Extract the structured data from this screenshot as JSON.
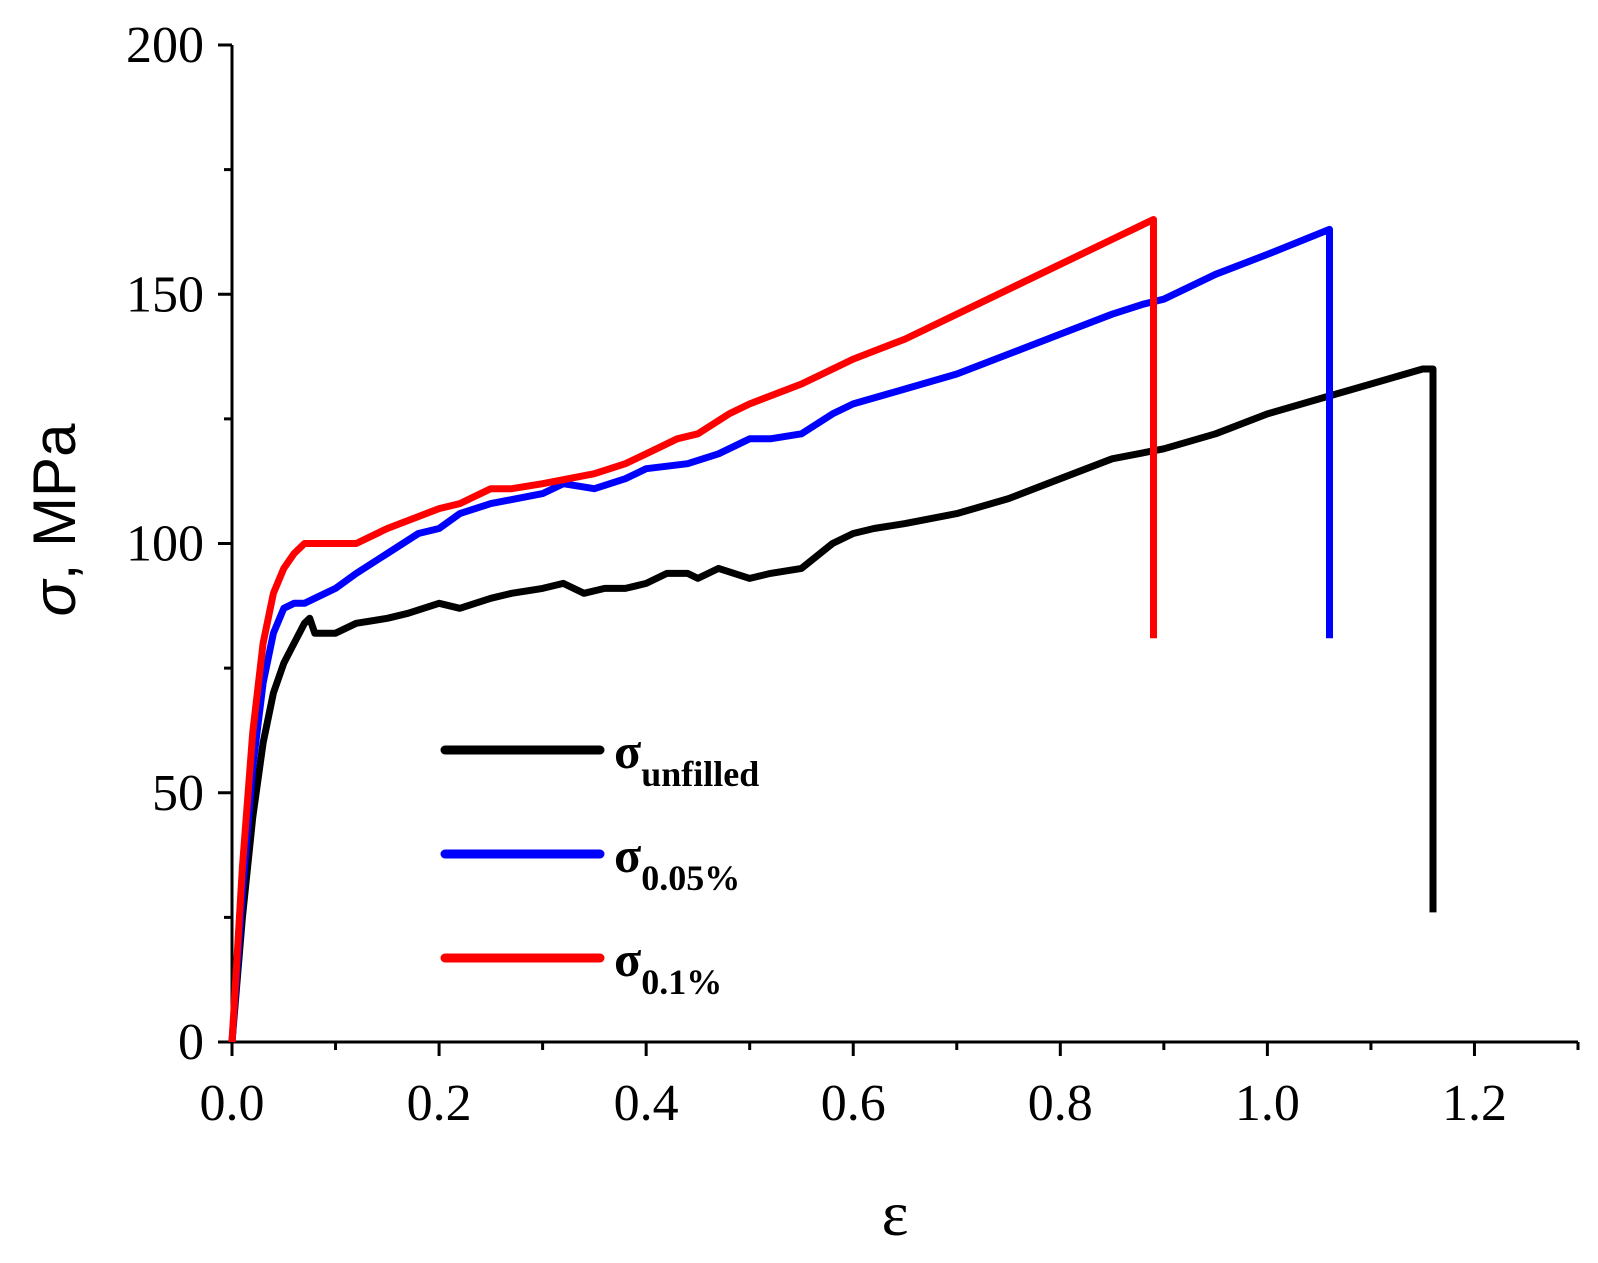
{
  "chart_data": {
    "type": "line",
    "title": "",
    "xlabel": "ε",
    "ylabel_symbol": "σ",
    "ylabel_unit": ", MPa",
    "xlim": [
      0,
      1.3
    ],
    "ylim": [
      0,
      200
    ],
    "xticks": [
      0.0,
      0.2,
      0.4,
      0.6,
      0.8,
      1.0,
      1.2
    ],
    "xtick_labels": [
      "0.0",
      "0.2",
      "0.4",
      "0.6",
      "0.8",
      "1.0",
      "1.2"
    ],
    "yticks": [
      0,
      50,
      100,
      150,
      200
    ],
    "ytick_labels": [
      "0",
      "50",
      "100",
      "150",
      "200"
    ],
    "legend_position": "bottom-left-center",
    "series": [
      {
        "name": "σ_unfilled",
        "label_main": "σ",
        "label_sub": "unfilled",
        "color": "#000000",
        "points": [
          [
            0.0,
            0
          ],
          [
            0.01,
            25
          ],
          [
            0.02,
            45
          ],
          [
            0.03,
            60
          ],
          [
            0.04,
            70
          ],
          [
            0.05,
            76
          ],
          [
            0.06,
            80
          ],
          [
            0.07,
            84
          ],
          [
            0.075,
            85
          ],
          [
            0.08,
            82
          ],
          [
            0.1,
            82
          ],
          [
            0.12,
            84
          ],
          [
            0.15,
            85
          ],
          [
            0.17,
            86
          ],
          [
            0.2,
            88
          ],
          [
            0.22,
            87
          ],
          [
            0.25,
            89
          ],
          [
            0.27,
            90
          ],
          [
            0.3,
            91
          ],
          [
            0.32,
            92
          ],
          [
            0.34,
            90
          ],
          [
            0.36,
            91
          ],
          [
            0.38,
            91
          ],
          [
            0.4,
            92
          ],
          [
            0.42,
            94
          ],
          [
            0.44,
            94
          ],
          [
            0.45,
            93
          ],
          [
            0.47,
            95
          ],
          [
            0.5,
            93
          ],
          [
            0.52,
            94
          ],
          [
            0.55,
            95
          ],
          [
            0.58,
            100
          ],
          [
            0.6,
            102
          ],
          [
            0.62,
            103
          ],
          [
            0.65,
            104
          ],
          [
            0.7,
            106
          ],
          [
            0.75,
            109
          ],
          [
            0.8,
            113
          ],
          [
            0.85,
            117
          ],
          [
            0.9,
            119
          ],
          [
            0.95,
            122
          ],
          [
            1.0,
            126
          ],
          [
            1.05,
            129
          ],
          [
            1.1,
            132
          ],
          [
            1.15,
            135
          ],
          [
            1.16,
            135
          ],
          [
            1.16,
            26
          ]
        ]
      },
      {
        "name": "σ_0.05%",
        "label_main": "σ",
        "label_sub": "0.05%",
        "color": "#0000ff",
        "points": [
          [
            0.0,
            0
          ],
          [
            0.01,
            30
          ],
          [
            0.02,
            55
          ],
          [
            0.03,
            72
          ],
          [
            0.04,
            82
          ],
          [
            0.05,
            87
          ],
          [
            0.06,
            88
          ],
          [
            0.07,
            88
          ],
          [
            0.08,
            89
          ],
          [
            0.1,
            91
          ],
          [
            0.12,
            94
          ],
          [
            0.15,
            98
          ],
          [
            0.18,
            102
          ],
          [
            0.2,
            103
          ],
          [
            0.22,
            106
          ],
          [
            0.25,
            108
          ],
          [
            0.3,
            110
          ],
          [
            0.32,
            112
          ],
          [
            0.35,
            111
          ],
          [
            0.38,
            113
          ],
          [
            0.4,
            115
          ],
          [
            0.44,
            116
          ],
          [
            0.47,
            118
          ],
          [
            0.5,
            121
          ],
          [
            0.52,
            121
          ],
          [
            0.55,
            122
          ],
          [
            0.58,
            126
          ],
          [
            0.6,
            128
          ],
          [
            0.65,
            131
          ],
          [
            0.7,
            134
          ],
          [
            0.75,
            138
          ],
          [
            0.8,
            142
          ],
          [
            0.85,
            146
          ],
          [
            0.88,
            148
          ],
          [
            0.9,
            149
          ],
          [
            0.95,
            154
          ],
          [
            1.0,
            158
          ],
          [
            1.06,
            163
          ],
          [
            1.06,
            81
          ]
        ]
      },
      {
        "name": "σ_0.1%",
        "label_main": "σ",
        "label_sub": "0.1%",
        "color": "#ff0000",
        "points": [
          [
            0.0,
            0
          ],
          [
            0.01,
            35
          ],
          [
            0.02,
            62
          ],
          [
            0.03,
            80
          ],
          [
            0.04,
            90
          ],
          [
            0.05,
            95
          ],
          [
            0.06,
            98
          ],
          [
            0.07,
            100
          ],
          [
            0.08,
            100
          ],
          [
            0.1,
            100
          ],
          [
            0.12,
            100
          ],
          [
            0.15,
            103
          ],
          [
            0.2,
            107
          ],
          [
            0.22,
            108
          ],
          [
            0.25,
            111
          ],
          [
            0.27,
            111
          ],
          [
            0.3,
            112
          ],
          [
            0.35,
            114
          ],
          [
            0.38,
            116
          ],
          [
            0.4,
            118
          ],
          [
            0.43,
            121
          ],
          [
            0.45,
            122
          ],
          [
            0.48,
            126
          ],
          [
            0.5,
            128
          ],
          [
            0.55,
            132
          ],
          [
            0.6,
            137
          ],
          [
            0.65,
            141
          ],
          [
            0.7,
            146
          ],
          [
            0.75,
            151
          ],
          [
            0.8,
            156
          ],
          [
            0.85,
            161
          ],
          [
            0.89,
            165
          ],
          [
            0.89,
            81
          ]
        ]
      }
    ]
  }
}
